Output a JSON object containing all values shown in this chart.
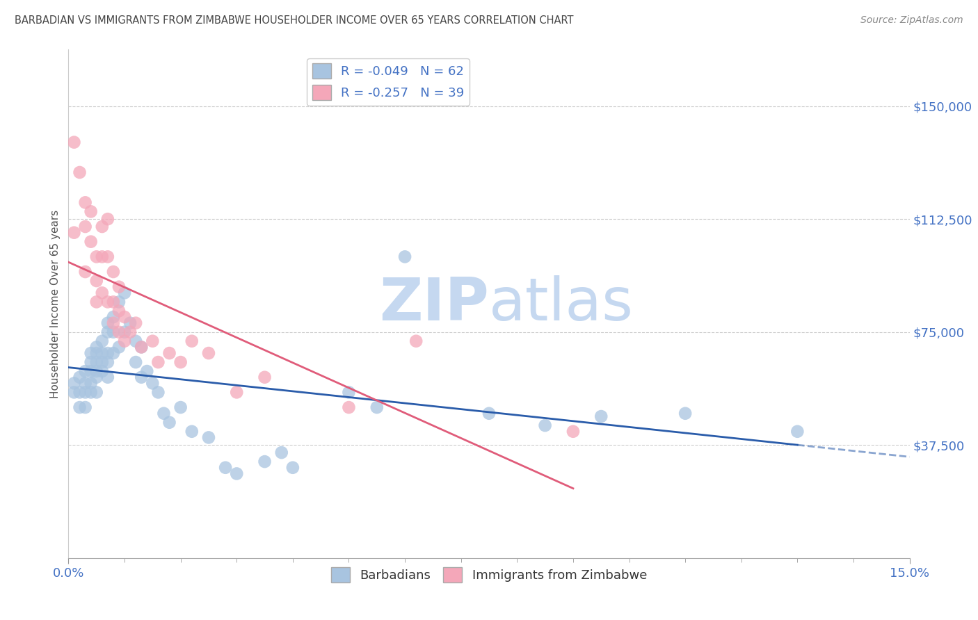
{
  "title": "BARBADIAN VS IMMIGRANTS FROM ZIMBABWE HOUSEHOLDER INCOME OVER 65 YEARS CORRELATION CHART",
  "source": "Source: ZipAtlas.com",
  "ylabel": "Householder Income Over 65 years",
  "xlim": [
    0.0,
    0.15
  ],
  "ylim": [
    0,
    168750
  ],
  "yticks": [
    37500,
    75000,
    112500,
    150000
  ],
  "ytick_labels": [
    "$37,500",
    "$75,000",
    "$112,500",
    "$150,000"
  ],
  "xticks": [
    0.0,
    0.15
  ],
  "xtick_labels": [
    "0.0%",
    "15.0%"
  ],
  "blue_R": "-0.049",
  "blue_N": "62",
  "pink_R": "-0.257",
  "pink_N": "39",
  "blue_color": "#a8c4e0",
  "pink_color": "#f4a7b9",
  "blue_line_color": "#2a5caa",
  "pink_line_color": "#e05c7a",
  "legend_label_blue": "Barbadians",
  "legend_label_pink": "Immigrants from Zimbabwe",
  "blue_scatter_x": [
    0.001,
    0.001,
    0.002,
    0.002,
    0.002,
    0.003,
    0.003,
    0.003,
    0.003,
    0.004,
    0.004,
    0.004,
    0.004,
    0.004,
    0.005,
    0.005,
    0.005,
    0.005,
    0.005,
    0.005,
    0.006,
    0.006,
    0.006,
    0.006,
    0.007,
    0.007,
    0.007,
    0.007,
    0.007,
    0.008,
    0.008,
    0.008,
    0.009,
    0.009,
    0.01,
    0.01,
    0.011,
    0.012,
    0.012,
    0.013,
    0.013,
    0.014,
    0.015,
    0.016,
    0.017,
    0.018,
    0.02,
    0.022,
    0.025,
    0.028,
    0.03,
    0.035,
    0.038,
    0.04,
    0.05,
    0.055,
    0.06,
    0.075,
    0.085,
    0.095,
    0.11,
    0.13
  ],
  "blue_scatter_y": [
    58000,
    55000,
    60000,
    55000,
    50000,
    62000,
    58000,
    55000,
    50000,
    68000,
    65000,
    62000,
    58000,
    55000,
    70000,
    68000,
    65000,
    62000,
    60000,
    55000,
    72000,
    68000,
    65000,
    62000,
    78000,
    75000,
    68000,
    65000,
    60000,
    80000,
    75000,
    68000,
    85000,
    70000,
    88000,
    75000,
    78000,
    72000,
    65000,
    70000,
    60000,
    62000,
    58000,
    55000,
    48000,
    45000,
    50000,
    42000,
    40000,
    30000,
    28000,
    32000,
    35000,
    30000,
    55000,
    50000,
    100000,
    48000,
    44000,
    47000,
    48000,
    42000
  ],
  "pink_scatter_x": [
    0.001,
    0.001,
    0.002,
    0.003,
    0.003,
    0.003,
    0.004,
    0.004,
    0.005,
    0.005,
    0.005,
    0.006,
    0.006,
    0.006,
    0.007,
    0.007,
    0.007,
    0.008,
    0.008,
    0.008,
    0.009,
    0.009,
    0.009,
    0.01,
    0.01,
    0.011,
    0.012,
    0.013,
    0.015,
    0.016,
    0.018,
    0.02,
    0.022,
    0.025,
    0.03,
    0.035,
    0.05,
    0.062,
    0.09
  ],
  "pink_scatter_y": [
    138000,
    108000,
    128000,
    118000,
    110000,
    95000,
    115000,
    105000,
    100000,
    92000,
    85000,
    110000,
    100000,
    88000,
    112500,
    100000,
    85000,
    95000,
    85000,
    78000,
    90000,
    82000,
    75000,
    80000,
    72000,
    75000,
    78000,
    70000,
    72000,
    65000,
    68000,
    65000,
    72000,
    68000,
    55000,
    60000,
    50000,
    72000,
    42000
  ],
  "background_color": "#ffffff",
  "grid_color": "#cccccc",
  "watermark_zip": "ZIP",
  "watermark_atlas": "atlas",
  "watermark_color_zip": "#c5d8f0",
  "watermark_color_atlas": "#c5d8f0",
  "axis_label_color": "#4472c4",
  "title_color": "#444444"
}
